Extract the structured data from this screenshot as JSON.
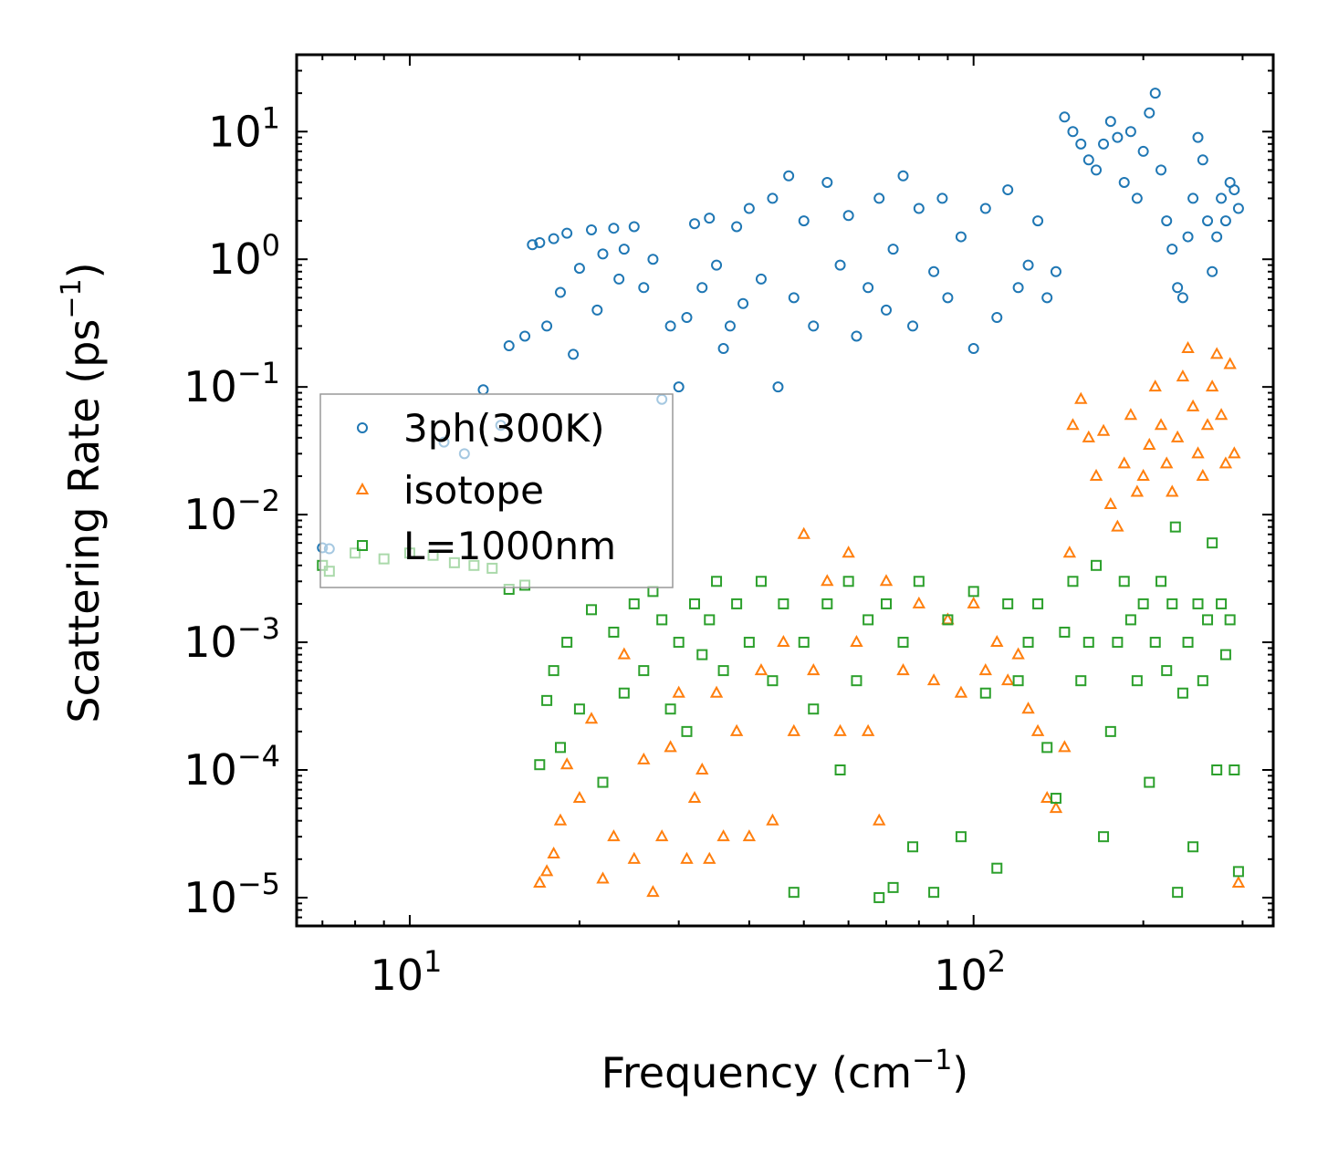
{
  "chart_data": {
    "type": "scatter",
    "title": "",
    "xlabel": "Frequency (cm",
    "xlabel_sup": "−1",
    "xlabel_close": ")",
    "ylabel": "Scattering Rate (ps",
    "ylabel_sup": "−1",
    "ylabel_close": ")",
    "xscale": "log",
    "yscale": "log",
    "xlim": [
      6.3,
      340
    ],
    "ylim": [
      6e-06,
      40
    ],
    "x_ticks": [
      {
        "value": 10,
        "base": "10",
        "exp": "1"
      },
      {
        "value": 100,
        "base": "10",
        "exp": "2"
      }
    ],
    "y_ticks": [
      {
        "value": 1e-05,
        "base": "10",
        "exp": "−5"
      },
      {
        "value": 0.0001,
        "base": "10",
        "exp": "−4"
      },
      {
        "value": 0.001,
        "base": "10",
        "exp": "−3"
      },
      {
        "value": 0.01,
        "base": "10",
        "exp": "−2"
      },
      {
        "value": 0.1,
        "base": "10",
        "exp": "−1"
      },
      {
        "value": 1,
        "base": "10",
        "exp": "0"
      },
      {
        "value": 10,
        "base": "10",
        "exp": "1"
      }
    ],
    "legend_position": "center-left",
    "series": [
      {
        "name": "3ph(300K)",
        "marker": "circle",
        "color": "#1f77b4",
        "points": [
          [
            7.0,
            0.0055
          ],
          [
            7.2,
            0.0054
          ],
          [
            11.5,
            0.037
          ],
          [
            12.5,
            0.03
          ],
          [
            13.5,
            0.095
          ],
          [
            14.5,
            0.05
          ],
          [
            15,
            0.21
          ],
          [
            16,
            0.25
          ],
          [
            16.5,
            1.3
          ],
          [
            17,
            1.35
          ],
          [
            17.5,
            0.3
          ],
          [
            18,
            1.45
          ],
          [
            18.5,
            0.55
          ],
          [
            19,
            1.6
          ],
          [
            19.5,
            0.18
          ],
          [
            20,
            0.85
          ],
          [
            21,
            1.7
          ],
          [
            21.5,
            0.4
          ],
          [
            22,
            1.1
          ],
          [
            23,
            1.75
          ],
          [
            23.5,
            0.7
          ],
          [
            24,
            1.2
          ],
          [
            25,
            1.8
          ],
          [
            26,
            0.6
          ],
          [
            27,
            1.0
          ],
          [
            28,
            0.08
          ],
          [
            29,
            0.3
          ],
          [
            30,
            0.1
          ],
          [
            31,
            0.35
          ],
          [
            32,
            1.9
          ],
          [
            33,
            0.6
          ],
          [
            34,
            2.1
          ],
          [
            35,
            0.9
          ],
          [
            36,
            0.2
          ],
          [
            37,
            0.3
          ],
          [
            38,
            1.8
          ],
          [
            39,
            0.45
          ],
          [
            40,
            2.5
          ],
          [
            42,
            0.7
          ],
          [
            44,
            3.0
          ],
          [
            45,
            0.1
          ],
          [
            47,
            4.5
          ],
          [
            48,
            0.5
          ],
          [
            50,
            2.0
          ],
          [
            52,
            0.3
          ],
          [
            55,
            4.0
          ],
          [
            58,
            0.9
          ],
          [
            60,
            2.2
          ],
          [
            62,
            0.25
          ],
          [
            65,
            0.6
          ],
          [
            68,
            3.0
          ],
          [
            70,
            0.4
          ],
          [
            72,
            1.2
          ],
          [
            75,
            4.5
          ],
          [
            78,
            0.3
          ],
          [
            80,
            2.5
          ],
          [
            85,
            0.8
          ],
          [
            88,
            3.0
          ],
          [
            90,
            0.5
          ],
          [
            95,
            1.5
          ],
          [
            100,
            0.2
          ],
          [
            105,
            2.5
          ],
          [
            110,
            0.35
          ],
          [
            115,
            3.5
          ],
          [
            120,
            0.6
          ],
          [
            125,
            0.9
          ],
          [
            130,
            2.0
          ],
          [
            135,
            0.5
          ],
          [
            140,
            0.8
          ],
          [
            145,
            13
          ],
          [
            150,
            10
          ],
          [
            155,
            8
          ],
          [
            160,
            6
          ],
          [
            165,
            5
          ],
          [
            170,
            8
          ],
          [
            175,
            12
          ],
          [
            180,
            9
          ],
          [
            185,
            4
          ],
          [
            190,
            10
          ],
          [
            195,
            3
          ],
          [
            200,
            7
          ],
          [
            205,
            14
          ],
          [
            210,
            20
          ],
          [
            215,
            5
          ],
          [
            220,
            2
          ],
          [
            225,
            1.2
          ],
          [
            230,
            0.6
          ],
          [
            235,
            0.5
          ],
          [
            240,
            1.5
          ],
          [
            245,
            3.0
          ],
          [
            250,
            9
          ],
          [
            255,
            6
          ],
          [
            260,
            2.0
          ],
          [
            265,
            0.8
          ],
          [
            270,
            1.5
          ],
          [
            275,
            3.0
          ],
          [
            280,
            2.0
          ],
          [
            285,
            4.0
          ],
          [
            290,
            3.5
          ],
          [
            295,
            2.5
          ]
        ]
      },
      {
        "name": "isotope",
        "marker": "triangle",
        "color": "#ff7f0e",
        "points": [
          [
            17,
            1.3e-05
          ],
          [
            17.5,
            1.6e-05
          ],
          [
            18,
            2.2e-05
          ],
          [
            18.5,
            4e-05
          ],
          [
            19,
            0.00011
          ],
          [
            20,
            6e-05
          ],
          [
            21,
            0.00025
          ],
          [
            22,
            1.4e-05
          ],
          [
            23,
            3e-05
          ],
          [
            24,
            0.0008
          ],
          [
            25,
            2e-05
          ],
          [
            26,
            0.00012
          ],
          [
            27,
            1.1e-05
          ],
          [
            28,
            3e-05
          ],
          [
            29,
            0.00015
          ],
          [
            30,
            0.0004
          ],
          [
            31,
            2e-05
          ],
          [
            32,
            6e-05
          ],
          [
            33,
            0.0001
          ],
          [
            34,
            2e-05
          ],
          [
            35,
            0.0004
          ],
          [
            36,
            3e-05
          ],
          [
            38,
            0.0002
          ],
          [
            40,
            3e-05
          ],
          [
            42,
            0.0006
          ],
          [
            44,
            4e-05
          ],
          [
            46,
            0.001
          ],
          [
            48,
            0.0002
          ],
          [
            50,
            0.007
          ],
          [
            52,
            0.0006
          ],
          [
            55,
            0.003
          ],
          [
            58,
            0.0002
          ],
          [
            60,
            0.005
          ],
          [
            62,
            0.001
          ],
          [
            65,
            0.0002
          ],
          [
            68,
            4e-05
          ],
          [
            70,
            0.003
          ],
          [
            75,
            0.0006
          ],
          [
            80,
            0.002
          ],
          [
            85,
            0.0005
          ],
          [
            90,
            0.0015
          ],
          [
            95,
            0.0004
          ],
          [
            100,
            0.002
          ],
          [
            105,
            0.0006
          ],
          [
            110,
            0.001
          ],
          [
            115,
            0.0005
          ],
          [
            120,
            0.0008
          ],
          [
            125,
            0.0003
          ],
          [
            130,
            0.0002
          ],
          [
            135,
            6e-05
          ],
          [
            140,
            5e-05
          ],
          [
            145,
            0.00015
          ],
          [
            148,
            0.005
          ],
          [
            150,
            0.05
          ],
          [
            155,
            0.08
          ],
          [
            160,
            0.04
          ],
          [
            165,
            0.02
          ],
          [
            170,
            0.045
          ],
          [
            175,
            0.012
          ],
          [
            180,
            0.008
          ],
          [
            185,
            0.025
          ],
          [
            190,
            0.06
          ],
          [
            195,
            0.015
          ],
          [
            200,
            0.02
          ],
          [
            205,
            0.035
          ],
          [
            210,
            0.1
          ],
          [
            215,
            0.05
          ],
          [
            220,
            0.025
          ],
          [
            225,
            0.015
          ],
          [
            230,
            0.04
          ],
          [
            235,
            0.12
          ],
          [
            240,
            0.2
          ],
          [
            245,
            0.07
          ],
          [
            250,
            0.03
          ],
          [
            255,
            0.02
          ],
          [
            260,
            0.05
          ],
          [
            265,
            0.1
          ],
          [
            270,
            0.18
          ],
          [
            275,
            0.06
          ],
          [
            280,
            0.025
          ],
          [
            285,
            0.15
          ],
          [
            290,
            0.03
          ],
          [
            295,
            1.3e-05
          ]
        ]
      },
      {
        "name": "L=1000nm",
        "marker": "square",
        "color": "#2ca02c",
        "points": [
          [
            7,
            0.004
          ],
          [
            7.2,
            0.0036
          ],
          [
            8,
            0.005
          ],
          [
            9,
            0.0045
          ],
          [
            10,
            0.005
          ],
          [
            11,
            0.0048
          ],
          [
            12,
            0.0042
          ],
          [
            13,
            0.004
          ],
          [
            14,
            0.0038
          ],
          [
            15,
            0.0026
          ],
          [
            16,
            0.0028
          ],
          [
            17,
            0.00011
          ],
          [
            17.5,
            0.00035
          ],
          [
            18,
            0.0006
          ],
          [
            18.5,
            0.00015
          ],
          [
            19,
            0.001
          ],
          [
            20,
            0.0003
          ],
          [
            21,
            0.0018
          ],
          [
            22,
            8e-05
          ],
          [
            23,
            0.0012
          ],
          [
            24,
            0.0004
          ],
          [
            25,
            0.002
          ],
          [
            26,
            0.0006
          ],
          [
            27,
            0.0025
          ],
          [
            28,
            0.0015
          ],
          [
            29,
            0.0003
          ],
          [
            30,
            0.001
          ],
          [
            31,
            0.0002
          ],
          [
            32,
            0.002
          ],
          [
            33,
            0.0008
          ],
          [
            34,
            0.0015
          ],
          [
            35,
            0.003
          ],
          [
            36,
            0.0006
          ],
          [
            38,
            0.002
          ],
          [
            40,
            0.001
          ],
          [
            42,
            0.003
          ],
          [
            44,
            0.0005
          ],
          [
            46,
            0.002
          ],
          [
            48,
            1.1e-05
          ],
          [
            50,
            0.001
          ],
          [
            52,
            0.0003
          ],
          [
            55,
            0.002
          ],
          [
            58,
            0.0001
          ],
          [
            60,
            0.003
          ],
          [
            62,
            0.0005
          ],
          [
            65,
            0.0015
          ],
          [
            68,
            1e-05
          ],
          [
            70,
            0.002
          ],
          [
            72,
            1.2e-05
          ],
          [
            75,
            0.001
          ],
          [
            78,
            2.5e-05
          ],
          [
            80,
            0.003
          ],
          [
            85,
            1.1e-05
          ],
          [
            90,
            0.0015
          ],
          [
            95,
            3e-05
          ],
          [
            100,
            0.0025
          ],
          [
            105,
            0.0004
          ],
          [
            110,
            1.7e-05
          ],
          [
            115,
            0.002
          ],
          [
            120,
            0.0005
          ],
          [
            125,
            0.001
          ],
          [
            130,
            0.002
          ],
          [
            135,
            0.00015
          ],
          [
            140,
            6e-05
          ],
          [
            145,
            0.0012
          ],
          [
            150,
            0.003
          ],
          [
            155,
            0.0005
          ],
          [
            160,
            0.001
          ],
          [
            165,
            0.004
          ],
          [
            170,
            3e-05
          ],
          [
            175,
            0.0002
          ],
          [
            180,
            0.001
          ],
          [
            185,
            0.003
          ],
          [
            190,
            0.0015
          ],
          [
            195,
            0.0005
          ],
          [
            200,
            0.002
          ],
          [
            205,
            8e-05
          ],
          [
            210,
            0.001
          ],
          [
            215,
            0.003
          ],
          [
            220,
            0.0006
          ],
          [
            225,
            0.002
          ],
          [
            228,
            0.008
          ],
          [
            230,
            1.1e-05
          ],
          [
            235,
            0.0004
          ],
          [
            240,
            0.001
          ],
          [
            245,
            2.5e-05
          ],
          [
            250,
            0.002
          ],
          [
            255,
            0.0005
          ],
          [
            260,
            0.0015
          ],
          [
            265,
            0.006
          ],
          [
            270,
            0.0001
          ],
          [
            275,
            0.002
          ],
          [
            280,
            0.0008
          ],
          [
            285,
            0.0015
          ],
          [
            290,
            0.0001
          ],
          [
            295,
            1.6e-05
          ]
        ]
      }
    ]
  }
}
